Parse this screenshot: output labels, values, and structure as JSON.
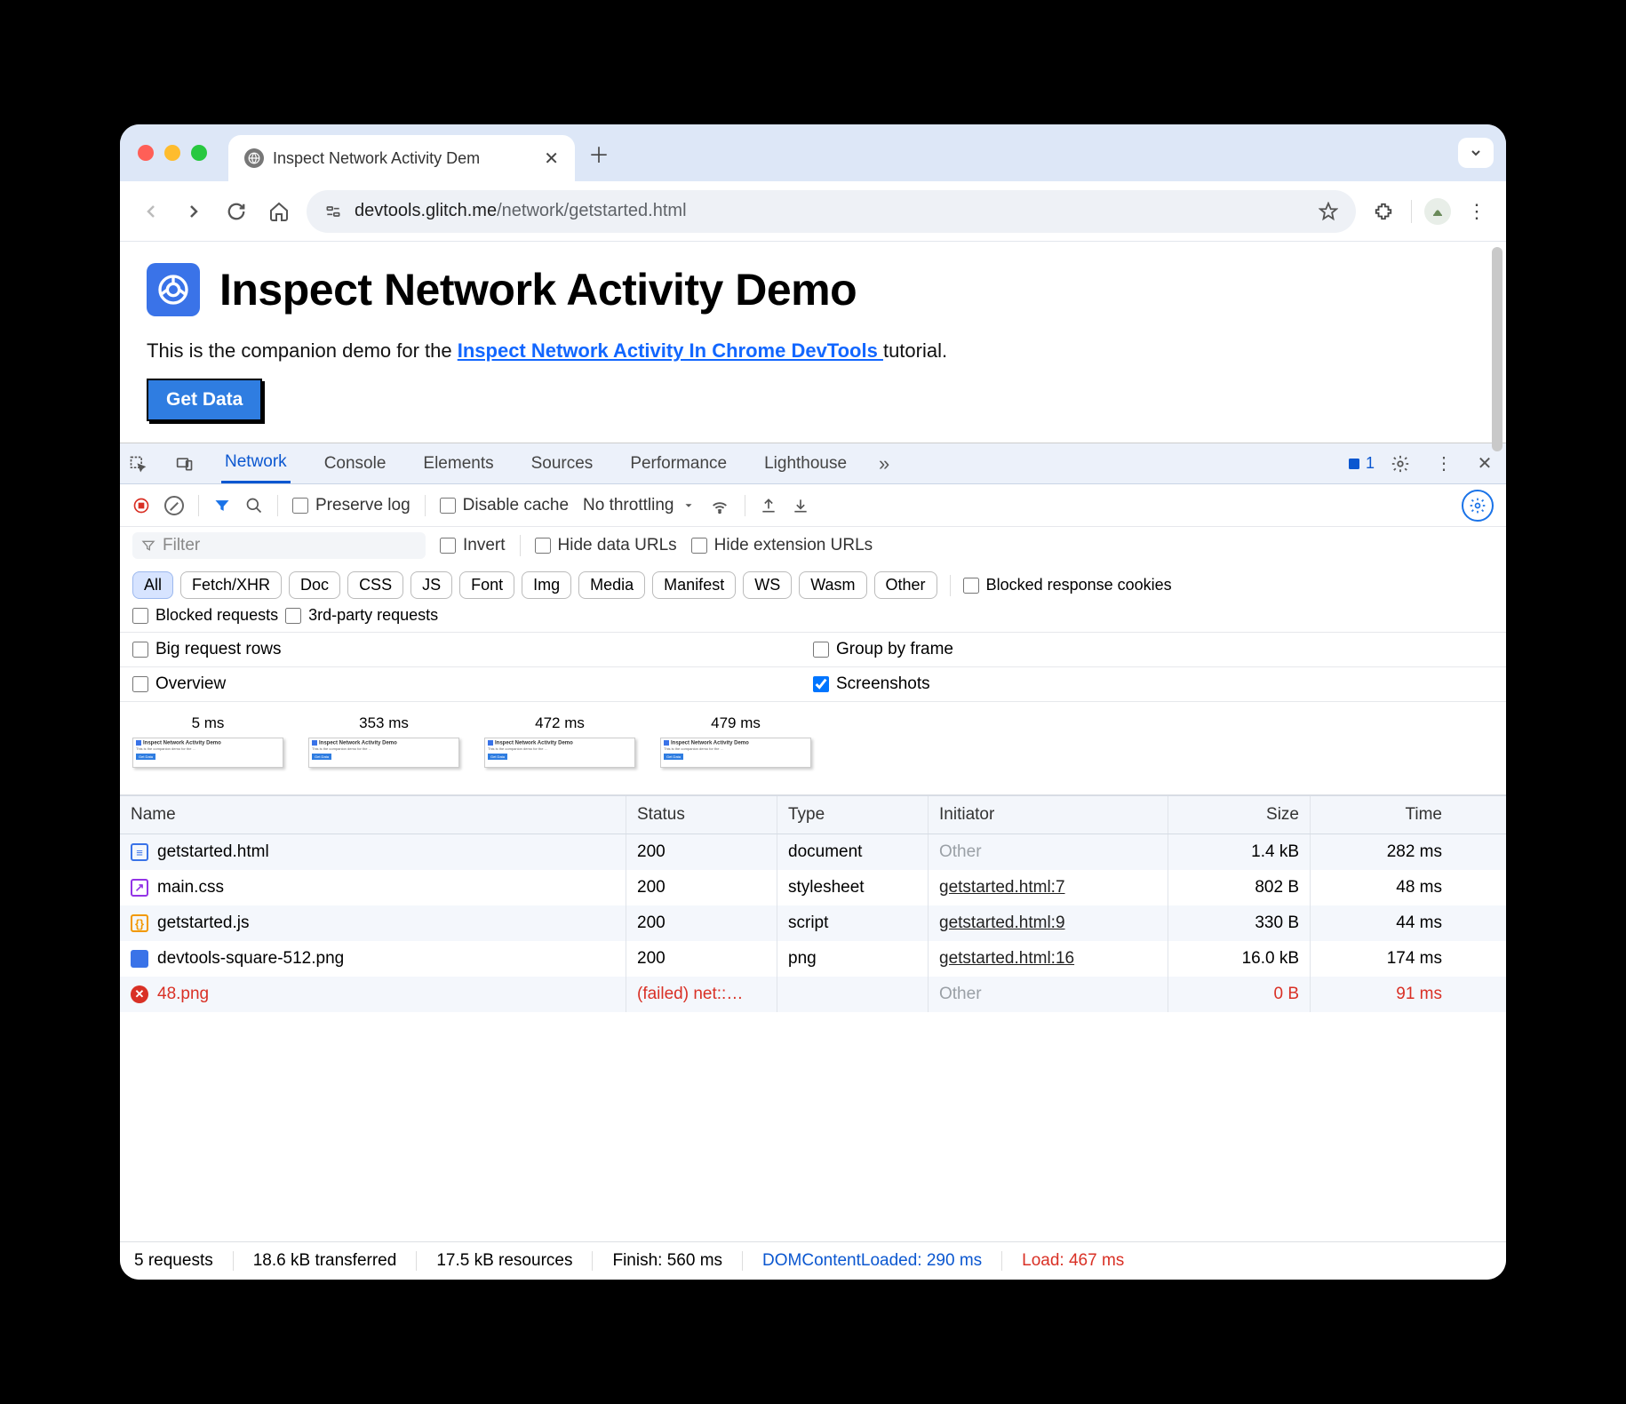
{
  "browser": {
    "tab_title": "Inspect Network Activity Dem",
    "url_host": "devtools.glitch.me",
    "url_path": "/network/getstarted.html"
  },
  "page": {
    "heading": "Inspect Network Activity Demo",
    "subtitle_pre": "This is the companion demo for the ",
    "subtitle_link": "Inspect Network Activity In Chrome DevTools ",
    "subtitle_post": "tutorial.",
    "button": "Get Data"
  },
  "devtools": {
    "tabs": [
      "Network",
      "Console",
      "Elements",
      "Sources",
      "Performance",
      "Lighthouse"
    ],
    "active_tab": "Network",
    "issues_count": "1"
  },
  "net_toolbar": {
    "preserve_log": "Preserve log",
    "disable_cache": "Disable cache",
    "throttling": "No throttling"
  },
  "filters": {
    "placeholder": "Filter",
    "invert": "Invert",
    "hide_data": "Hide data URLs",
    "hide_ext": "Hide extension URLs",
    "chips": [
      "All",
      "Fetch/XHR",
      "Doc",
      "CSS",
      "JS",
      "Font",
      "Img",
      "Media",
      "Manifest",
      "WS",
      "Wasm",
      "Other"
    ],
    "active_chip": "All",
    "blocked_cookies": "Blocked response cookies",
    "blocked_requests": "Blocked requests",
    "third_party": "3rd-party requests"
  },
  "options": {
    "big_rows": "Big request rows",
    "group_frame": "Group by frame",
    "overview": "Overview",
    "screenshots": "Screenshots"
  },
  "screenshots": [
    {
      "label": "5 ms"
    },
    {
      "label": "353 ms"
    },
    {
      "label": "472 ms"
    },
    {
      "label": "479 ms"
    }
  ],
  "table": {
    "columns": [
      "Name",
      "Status",
      "Type",
      "Initiator",
      "Size",
      "Time"
    ],
    "rows": [
      {
        "icon": "doc",
        "name": "getstarted.html",
        "status": "200",
        "type": "document",
        "initiator": "Other",
        "initiator_muted": true,
        "size": "1.4 kB",
        "time": "282 ms",
        "failed": false
      },
      {
        "icon": "css",
        "name": "main.css",
        "status": "200",
        "type": "stylesheet",
        "initiator": "getstarted.html:7",
        "initiator_muted": false,
        "size": "802 B",
        "time": "48 ms",
        "failed": false
      },
      {
        "icon": "js",
        "name": "getstarted.js",
        "status": "200",
        "type": "script",
        "initiator": "getstarted.html:9",
        "initiator_muted": false,
        "size": "330 B",
        "time": "44 ms",
        "failed": false
      },
      {
        "icon": "img",
        "name": "devtools-square-512.png",
        "status": "200",
        "type": "png",
        "initiator": "getstarted.html:16",
        "initiator_muted": false,
        "size": "16.0 kB",
        "time": "174 ms",
        "failed": false
      },
      {
        "icon": "err",
        "name": "48.png",
        "status": "(failed) net::…",
        "type": "",
        "initiator": "Other",
        "initiator_muted": true,
        "size": "0 B",
        "time": "91 ms",
        "failed": true
      }
    ]
  },
  "statusbar": {
    "requests": "5 requests",
    "transferred": "18.6 kB transferred",
    "resources": "17.5 kB resources",
    "finish": "Finish: 560 ms",
    "dcl": "DOMContentLoaded: 290 ms",
    "load": "Load: 467 ms"
  },
  "colors": {
    "accent_blue": "#1a73e8",
    "error_red": "#d93025",
    "tabstrip_bg": "#dde7f7",
    "header_bg": "#ecf1fa"
  }
}
